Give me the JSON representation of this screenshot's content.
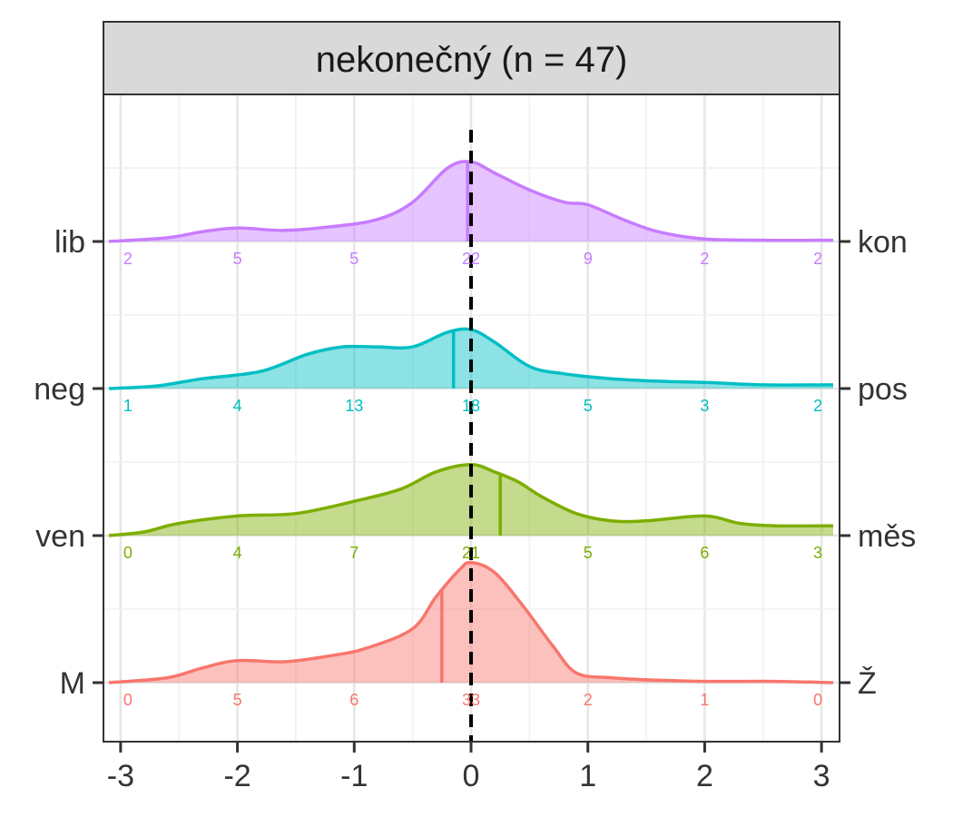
{
  "chart_data": {
    "type": "ridgeline",
    "title": "nekonečný (n = 47)",
    "xlabel": "",
    "ylabel": "",
    "xlim": [
      -3.1,
      3.1
    ],
    "x_ticks": [
      "-3",
      "-2",
      "-1",
      "0",
      "1",
      "2",
      "3"
    ],
    "reference_line_x": 0,
    "grid": true,
    "series": [
      {
        "left_label": "M",
        "right_label": "Ž",
        "color": "#F8766D",
        "mean": -0.25,
        "counts": [
          0,
          5,
          6,
          33,
          2,
          1,
          0
        ],
        "density": {
          "x": [
            -3.1,
            -2.6,
            -2.3,
            -2.0,
            -1.6,
            -1.2,
            -0.9,
            -0.5,
            -0.3,
            -0.1,
            0.0,
            0.2,
            0.45,
            0.7,
            0.9,
            1.2,
            1.6,
            2.0,
            2.6,
            3.1
          ],
          "y": [
            0.0,
            0.04,
            0.12,
            0.18,
            0.17,
            0.22,
            0.28,
            0.44,
            0.7,
            0.92,
            0.98,
            0.9,
            0.62,
            0.3,
            0.08,
            0.04,
            0.02,
            0.01,
            0.01,
            0.0
          ]
        }
      },
      {
        "left_label": "ven",
        "right_label": "měs",
        "color": "#7CAE00",
        "mean": 0.25,
        "counts": [
          0,
          4,
          7,
          21,
          5,
          6,
          3
        ],
        "density": {
          "x": [
            -3.1,
            -2.8,
            -2.5,
            -2.0,
            -1.5,
            -1.0,
            -0.6,
            -0.3,
            0.0,
            0.2,
            0.4,
            0.6,
            0.9,
            1.2,
            1.5,
            2.0,
            2.3,
            2.6,
            3.1
          ],
          "y": [
            0.0,
            0.03,
            0.1,
            0.16,
            0.18,
            0.28,
            0.38,
            0.52,
            0.58,
            0.52,
            0.44,
            0.32,
            0.18,
            0.12,
            0.12,
            0.16,
            0.1,
            0.08,
            0.08
          ]
        }
      },
      {
        "left_label": "neg",
        "right_label": "pos",
        "color": "#00BFC4",
        "mean": -0.15,
        "counts": [
          1,
          4,
          13,
          18,
          5,
          3,
          2
        ],
        "density": {
          "x": [
            -3.1,
            -2.7,
            -2.3,
            -1.8,
            -1.4,
            -1.1,
            -0.8,
            -0.5,
            -0.2,
            0.0,
            0.2,
            0.5,
            0.8,
            1.2,
            1.6,
            2.0,
            2.5,
            3.1
          ],
          "y": [
            0.0,
            0.02,
            0.08,
            0.14,
            0.28,
            0.34,
            0.34,
            0.34,
            0.46,
            0.48,
            0.38,
            0.18,
            0.12,
            0.08,
            0.06,
            0.05,
            0.03,
            0.03
          ]
        }
      },
      {
        "left_label": "lib",
        "right_label": "kon",
        "color": "#C77CFF",
        "mean": -0.03,
        "counts": [
          2,
          5,
          5,
          22,
          9,
          2,
          2
        ],
        "density": {
          "x": [
            -3.1,
            -2.6,
            -2.3,
            -2.0,
            -1.6,
            -1.2,
            -0.8,
            -0.5,
            -0.2,
            0.0,
            0.2,
            0.5,
            0.8,
            1.0,
            1.3,
            1.6,
            2.0,
            2.5,
            3.1
          ],
          "y": [
            0.0,
            0.03,
            0.08,
            0.11,
            0.09,
            0.12,
            0.18,
            0.32,
            0.6,
            0.65,
            0.56,
            0.42,
            0.32,
            0.3,
            0.18,
            0.08,
            0.02,
            0.01,
            0.01
          ]
        }
      }
    ]
  }
}
